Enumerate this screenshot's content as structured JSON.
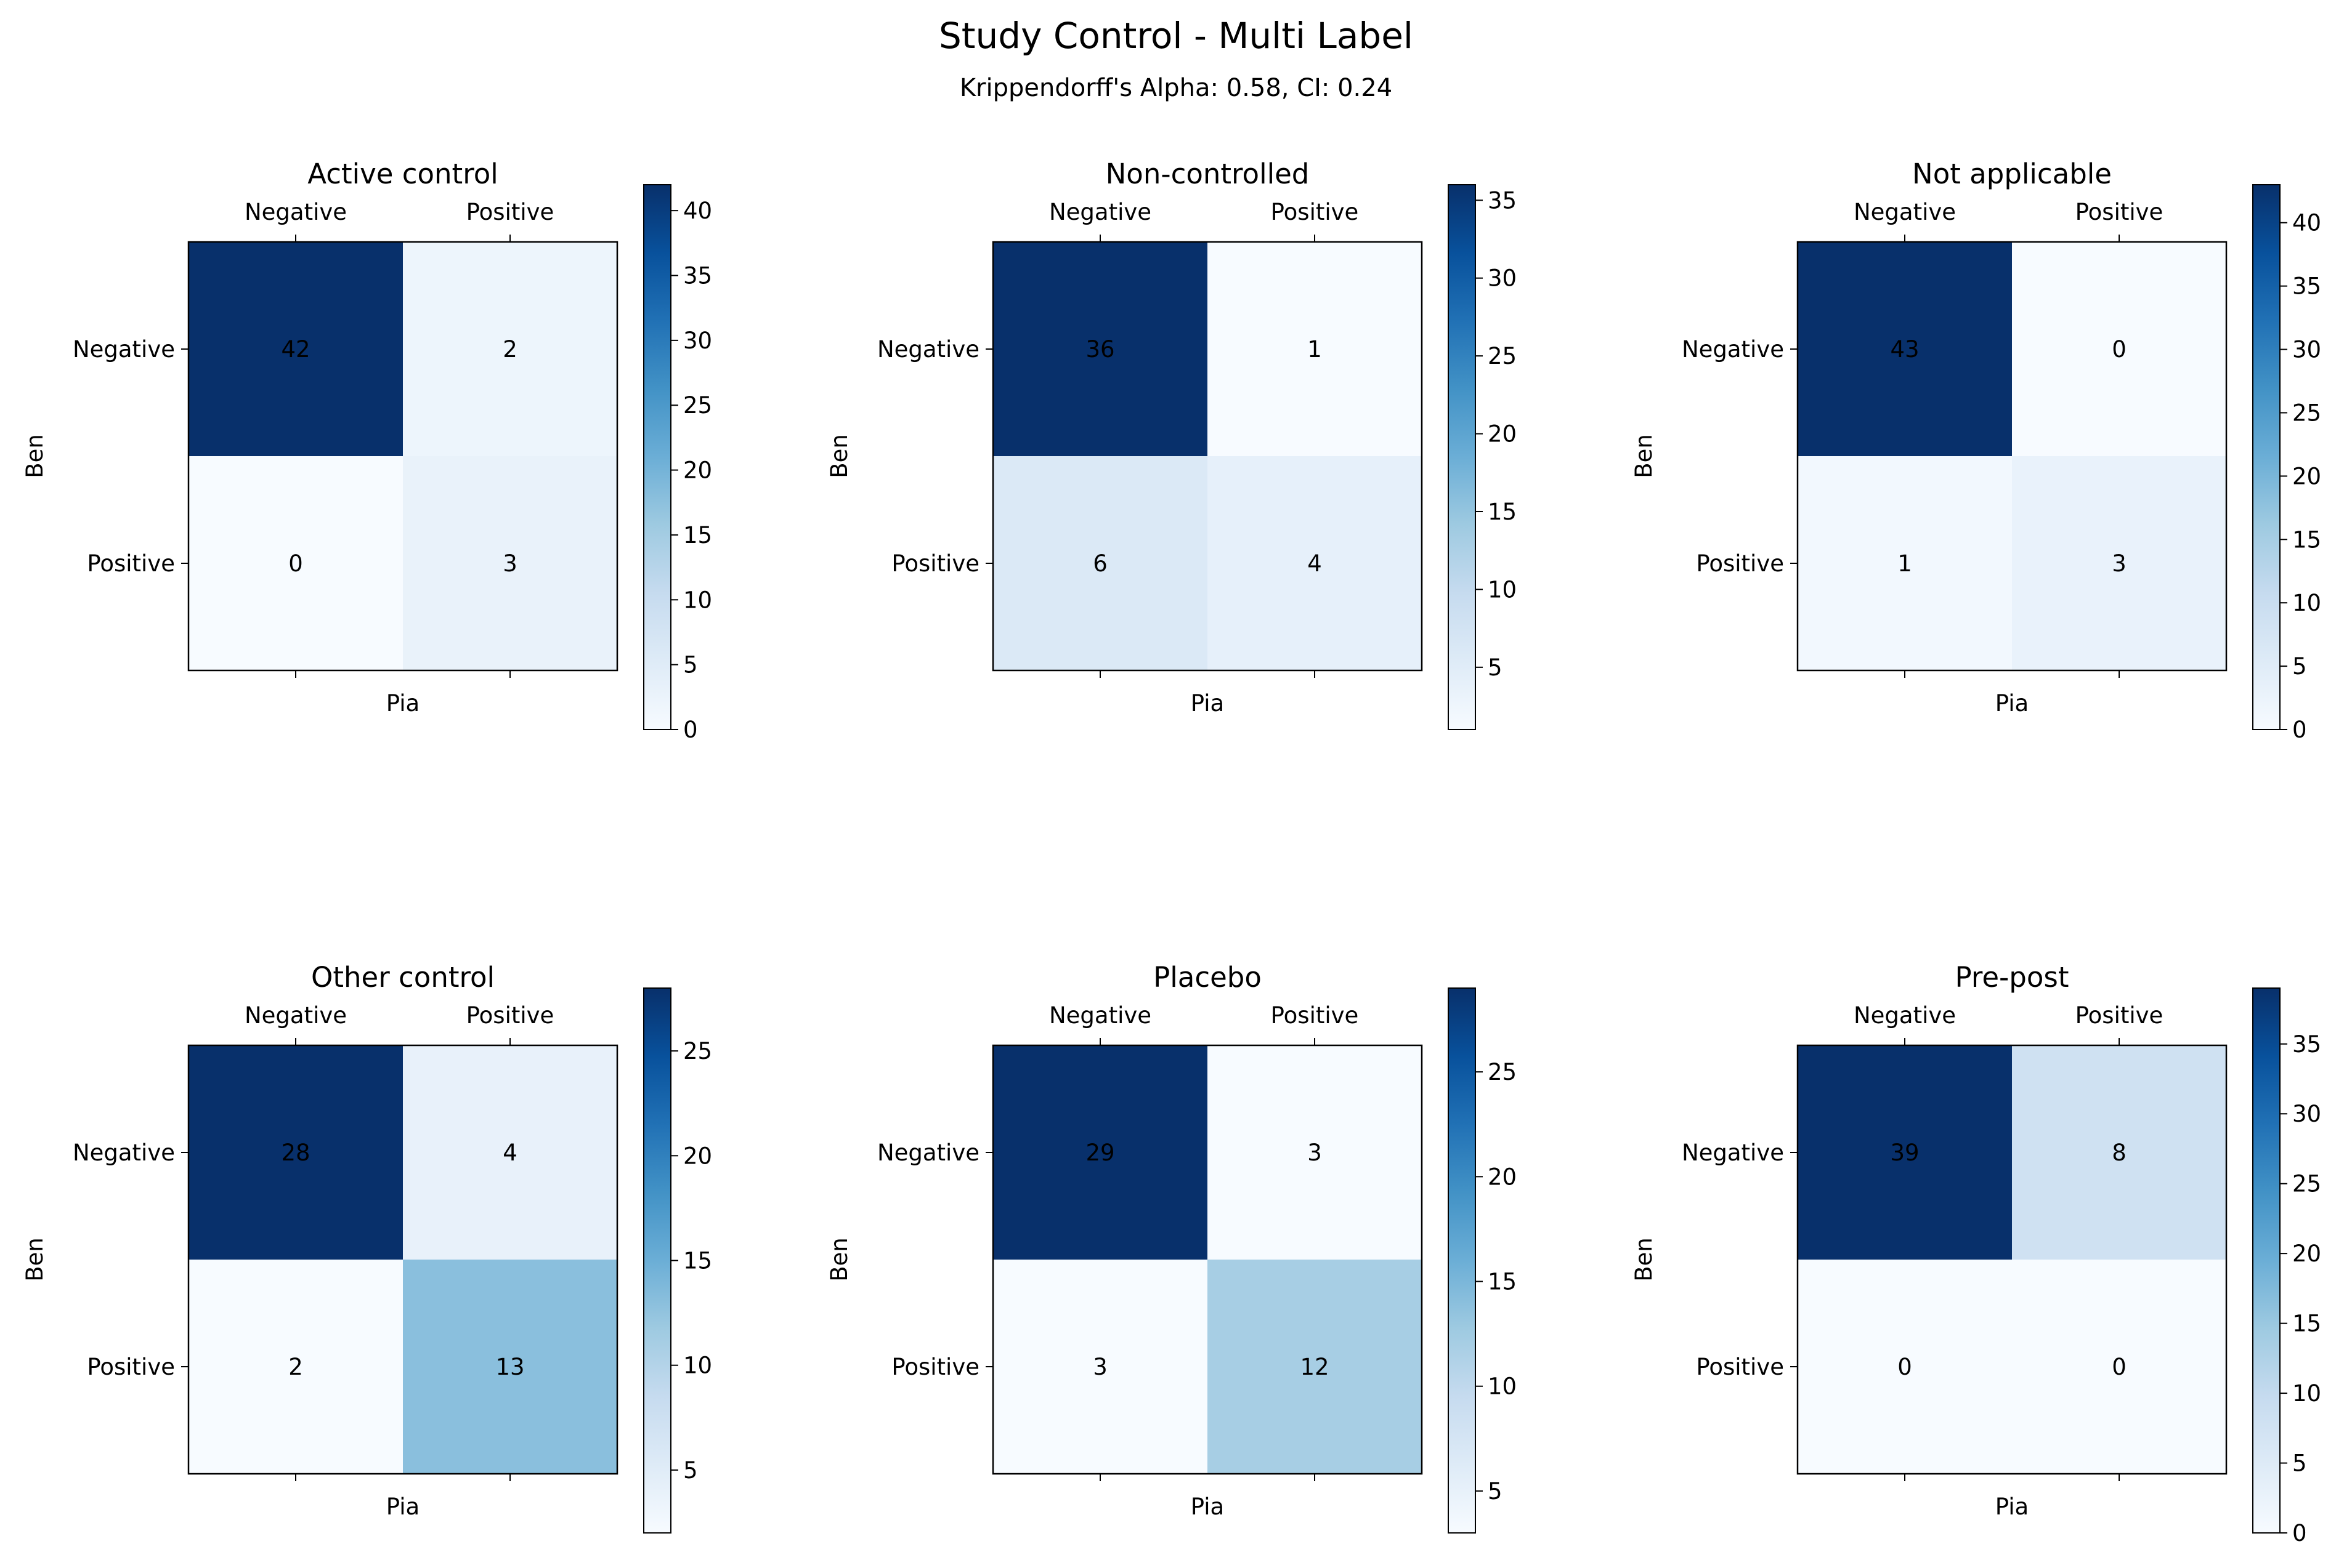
{
  "figure": {
    "title": "Study Control - Multi Label",
    "subtitle": "Krippendorff's Alpha: 0.58, CI: 0.24"
  },
  "chart_data": [
    {
      "type": "heatmap",
      "title": "Active control",
      "xlabel": "Pia",
      "ylabel": "Ben",
      "x_categories": [
        "Negative",
        "Positive"
      ],
      "y_categories": [
        "Negative",
        "Positive"
      ],
      "matrix": [
        [
          42,
          2
        ],
        [
          0,
          3
        ]
      ],
      "colormap": "Blues",
      "colorbar": {
        "min": 0,
        "max": 42,
        "ticks": [
          0,
          5,
          10,
          15,
          20,
          25,
          30,
          35,
          40
        ]
      }
    },
    {
      "type": "heatmap",
      "title": "Non-controlled",
      "xlabel": "Pia",
      "ylabel": "Ben",
      "x_categories": [
        "Negative",
        "Positive"
      ],
      "y_categories": [
        "Negative",
        "Positive"
      ],
      "matrix": [
        [
          36,
          1
        ],
        [
          6,
          4
        ]
      ],
      "colormap": "Blues",
      "colorbar": {
        "min": 1,
        "max": 36,
        "ticks": [
          5,
          10,
          15,
          20,
          25,
          30,
          35
        ]
      }
    },
    {
      "type": "heatmap",
      "title": "Not applicable",
      "xlabel": "Pia",
      "ylabel": "Ben",
      "x_categories": [
        "Negative",
        "Positive"
      ],
      "y_categories": [
        "Negative",
        "Positive"
      ],
      "matrix": [
        [
          43,
          0
        ],
        [
          1,
          3
        ]
      ],
      "colormap": "Blues",
      "colorbar": {
        "min": 0,
        "max": 43,
        "ticks": [
          0,
          5,
          10,
          15,
          20,
          25,
          30,
          35,
          40
        ]
      }
    },
    {
      "type": "heatmap",
      "title": "Other control",
      "xlabel": "Pia",
      "ylabel": "Ben",
      "x_categories": [
        "Negative",
        "Positive"
      ],
      "y_categories": [
        "Negative",
        "Positive"
      ],
      "matrix": [
        [
          28,
          4
        ],
        [
          2,
          13
        ]
      ],
      "colormap": "Blues",
      "colorbar": {
        "min": 2,
        "max": 28,
        "ticks": [
          5,
          10,
          15,
          20,
          25
        ]
      }
    },
    {
      "type": "heatmap",
      "title": "Placebo",
      "xlabel": "Pia",
      "ylabel": "Ben",
      "x_categories": [
        "Negative",
        "Positive"
      ],
      "y_categories": [
        "Negative",
        "Positive"
      ],
      "matrix": [
        [
          29,
          3
        ],
        [
          3,
          12
        ]
      ],
      "colormap": "Blues",
      "colorbar": {
        "min": 3,
        "max": 29,
        "ticks": [
          5,
          10,
          15,
          20,
          25
        ]
      }
    },
    {
      "type": "heatmap",
      "title": "Pre-post",
      "xlabel": "Pia",
      "ylabel": "Ben",
      "x_categories": [
        "Negative",
        "Positive"
      ],
      "y_categories": [
        "Negative",
        "Positive"
      ],
      "matrix": [
        [
          39,
          8
        ],
        [
          0,
          0
        ]
      ],
      "colormap": "Blues",
      "colorbar": {
        "min": 0,
        "max": 39,
        "ticks": [
          0,
          5,
          10,
          15,
          20,
          25,
          30,
          35
        ]
      }
    }
  ]
}
